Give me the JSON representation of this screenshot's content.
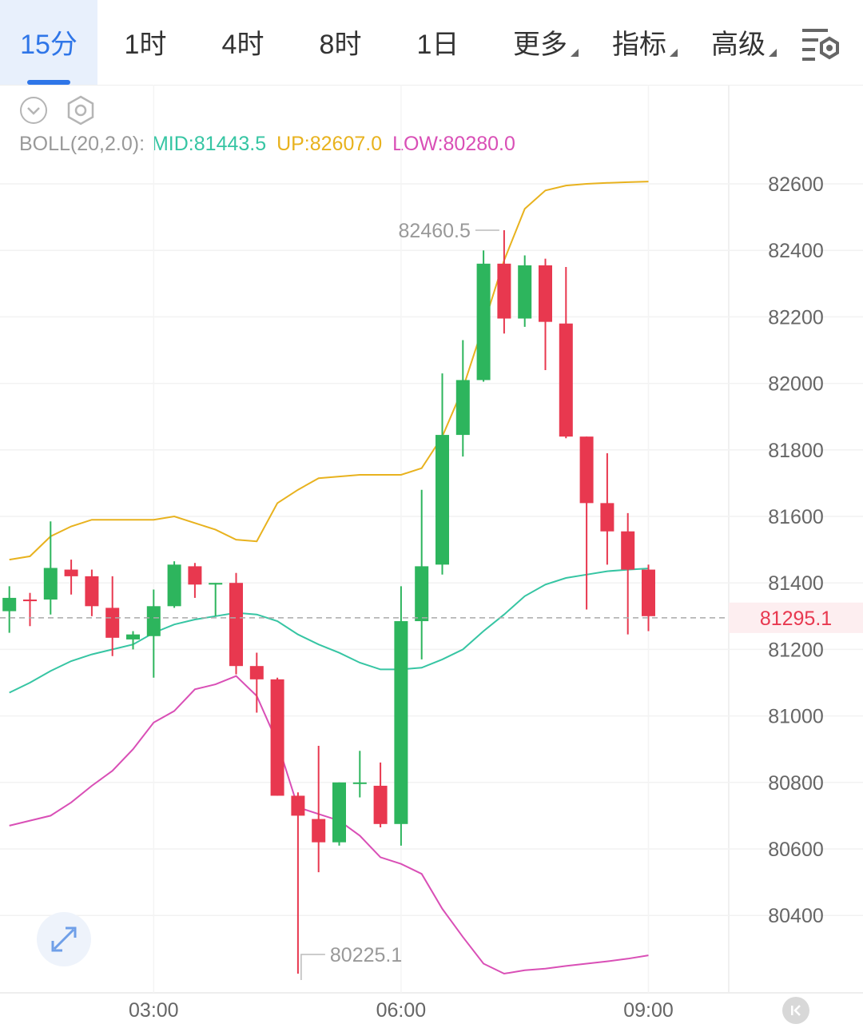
{
  "tabs": [
    {
      "label": "15分",
      "active": true
    },
    {
      "label": "1时"
    },
    {
      "label": "4时"
    },
    {
      "label": "8时"
    },
    {
      "label": "1日"
    },
    {
      "label": "更多",
      "dropdown": true
    },
    {
      "label": "指标",
      "dropdown": true
    },
    {
      "label": "高级",
      "dropdown": true
    }
  ],
  "icons": {
    "settings": "chart-settings-icon",
    "collapse": "chevron-down-circle-icon",
    "indicator": "hexagon-settings-icon",
    "expand": "expand-arrows-icon",
    "skip": "skip-to-start-icon"
  },
  "colors": {
    "accent": "#2f76e8",
    "up": "#2db55d",
    "down": "#e8384f",
    "mid": "#36c5a3",
    "upper": "#e8b21e",
    "lower": "#d94fb6"
  },
  "indicator": {
    "name": "BOLL(20,2.0):",
    "mid": "MID:81443.5",
    "up": "UP:82607.0",
    "low": "LOW:80280.0"
  },
  "chart_data": {
    "type": "candlestick",
    "interval": "15分",
    "y_axis": {
      "ticks": [
        82600,
        82400,
        82200,
        82000,
        81800,
        81600,
        81400,
        81200,
        81000,
        80800,
        80600,
        80400
      ],
      "labels": [
        "82600",
        "82400",
        "82200",
        "82000",
        "81800",
        "81600",
        "81400",
        "81200",
        "81000",
        "80800",
        "80600",
        "80400"
      ],
      "ylim": [
        80200,
        82700
      ]
    },
    "x_axis": {
      "ticks": [
        "03:00",
        "06:00",
        "09:00"
      ],
      "tick_index": [
        7,
        19,
        31
      ]
    },
    "last_price": 81295.1,
    "last_price_label": "81295.1",
    "high_annotation": {
      "value": 82460.5,
      "label": "82460.5",
      "index": 24
    },
    "low_annotation": {
      "value": 80225.1,
      "label": "80225.1",
      "index": 14
    },
    "candles": [
      {
        "o": 81315,
        "h": 81390,
        "l": 81250,
        "c": 81355
      },
      {
        "o": 81350,
        "h": 81370,
        "l": 81270,
        "c": 81345
      },
      {
        "o": 81350,
        "h": 81585,
        "l": 81305,
        "c": 81445
      },
      {
        "o": 81440,
        "h": 81470,
        "l": 81365,
        "c": 81420
      },
      {
        "o": 81420,
        "h": 81440,
        "l": 81300,
        "c": 81330
      },
      {
        "o": 81325,
        "h": 81420,
        "l": 81180,
        "c": 81235
      },
      {
        "o": 81230,
        "h": 81255,
        "l": 81200,
        "c": 81245
      },
      {
        "o": 81240,
        "h": 81380,
        "l": 81115,
        "c": 81330
      },
      {
        "o": 81330,
        "h": 81465,
        "l": 81325,
        "c": 81455
      },
      {
        "o": 81450,
        "h": 81460,
        "l": 81355,
        "c": 81395
      },
      {
        "o": 81395,
        "h": 81400,
        "l": 81300,
        "c": 81400
      },
      {
        "o": 81400,
        "h": 81430,
        "l": 81125,
        "c": 81150
      },
      {
        "o": 81150,
        "h": 81190,
        "l": 81010,
        "c": 81110
      },
      {
        "o": 81110,
        "h": 81115,
        "l": 80760,
        "c": 80760
      },
      {
        "o": 80760,
        "h": 80770,
        "l": 80225.1,
        "c": 80700
      },
      {
        "o": 80690,
        "h": 80910,
        "l": 80530,
        "c": 80620
      },
      {
        "o": 80620,
        "h": 80800,
        "l": 80610,
        "c": 80800
      },
      {
        "o": 80800,
        "h": 80895,
        "l": 80755,
        "c": 80800
      },
      {
        "o": 80790,
        "h": 80860,
        "l": 80665,
        "c": 80675
      },
      {
        "o": 80675,
        "h": 81390,
        "l": 80610,
        "c": 81285
      },
      {
        "o": 81285,
        "h": 81680,
        "l": 81170,
        "c": 81450
      },
      {
        "o": 81455,
        "h": 82030,
        "l": 81425,
        "c": 81845
      },
      {
        "o": 81845,
        "h": 82130,
        "l": 81780,
        "c": 82010
      },
      {
        "o": 82010,
        "h": 82400,
        "l": 82005,
        "c": 82360
      },
      {
        "o": 82360,
        "h": 82460.5,
        "l": 82150,
        "c": 82195
      },
      {
        "o": 82195,
        "h": 82385,
        "l": 82170,
        "c": 82355
      },
      {
        "o": 82355,
        "h": 82375,
        "l": 82040,
        "c": 82185
      },
      {
        "o": 82180,
        "h": 82350,
        "l": 81835,
        "c": 81840
      },
      {
        "o": 81840,
        "h": 81840,
        "l": 81320,
        "c": 81640
      },
      {
        "o": 81640,
        "h": 81790,
        "l": 81455,
        "c": 81555
      },
      {
        "o": 81555,
        "h": 81610,
        "l": 81245,
        "c": 81440
      },
      {
        "o": 81440,
        "h": 81455,
        "l": 81255,
        "c": 81300
      }
    ],
    "boll_upper": [
      81470,
      81480,
      81540,
      81570,
      81590,
      81590,
      81590,
      81590,
      81600,
      81580,
      81560,
      81530,
      81525,
      81640,
      81680,
      81715,
      81720,
      81725,
      81725,
      81725,
      81745,
      81840,
      81985,
      82175,
      82370,
      82525,
      82580,
      82595,
      82600,
      82603,
      82605,
      82607
    ],
    "boll_mid": [
      81070,
      81100,
      81135,
      81165,
      81185,
      81200,
      81215,
      81250,
      81275,
      81290,
      81300,
      81310,
      81305,
      81285,
      81245,
      81215,
      81190,
      81160,
      81140,
      81140,
      81145,
      81170,
      81200,
      81255,
      81305,
      81360,
      81395,
      81415,
      81425,
      81435,
      81440,
      81443.5
    ],
    "boll_lower": [
      80670,
      80685,
      80700,
      80740,
      80790,
      80835,
      80900,
      80980,
      81015,
      81080,
      81095,
      81120,
      81060,
      80920,
      80725,
      80705,
      80685,
      80640,
      80575,
      80555,
      80525,
      80420,
      80335,
      80255,
      80225,
      80235,
      80240,
      80248,
      80255,
      80262,
      80270,
      80280
    ]
  }
}
